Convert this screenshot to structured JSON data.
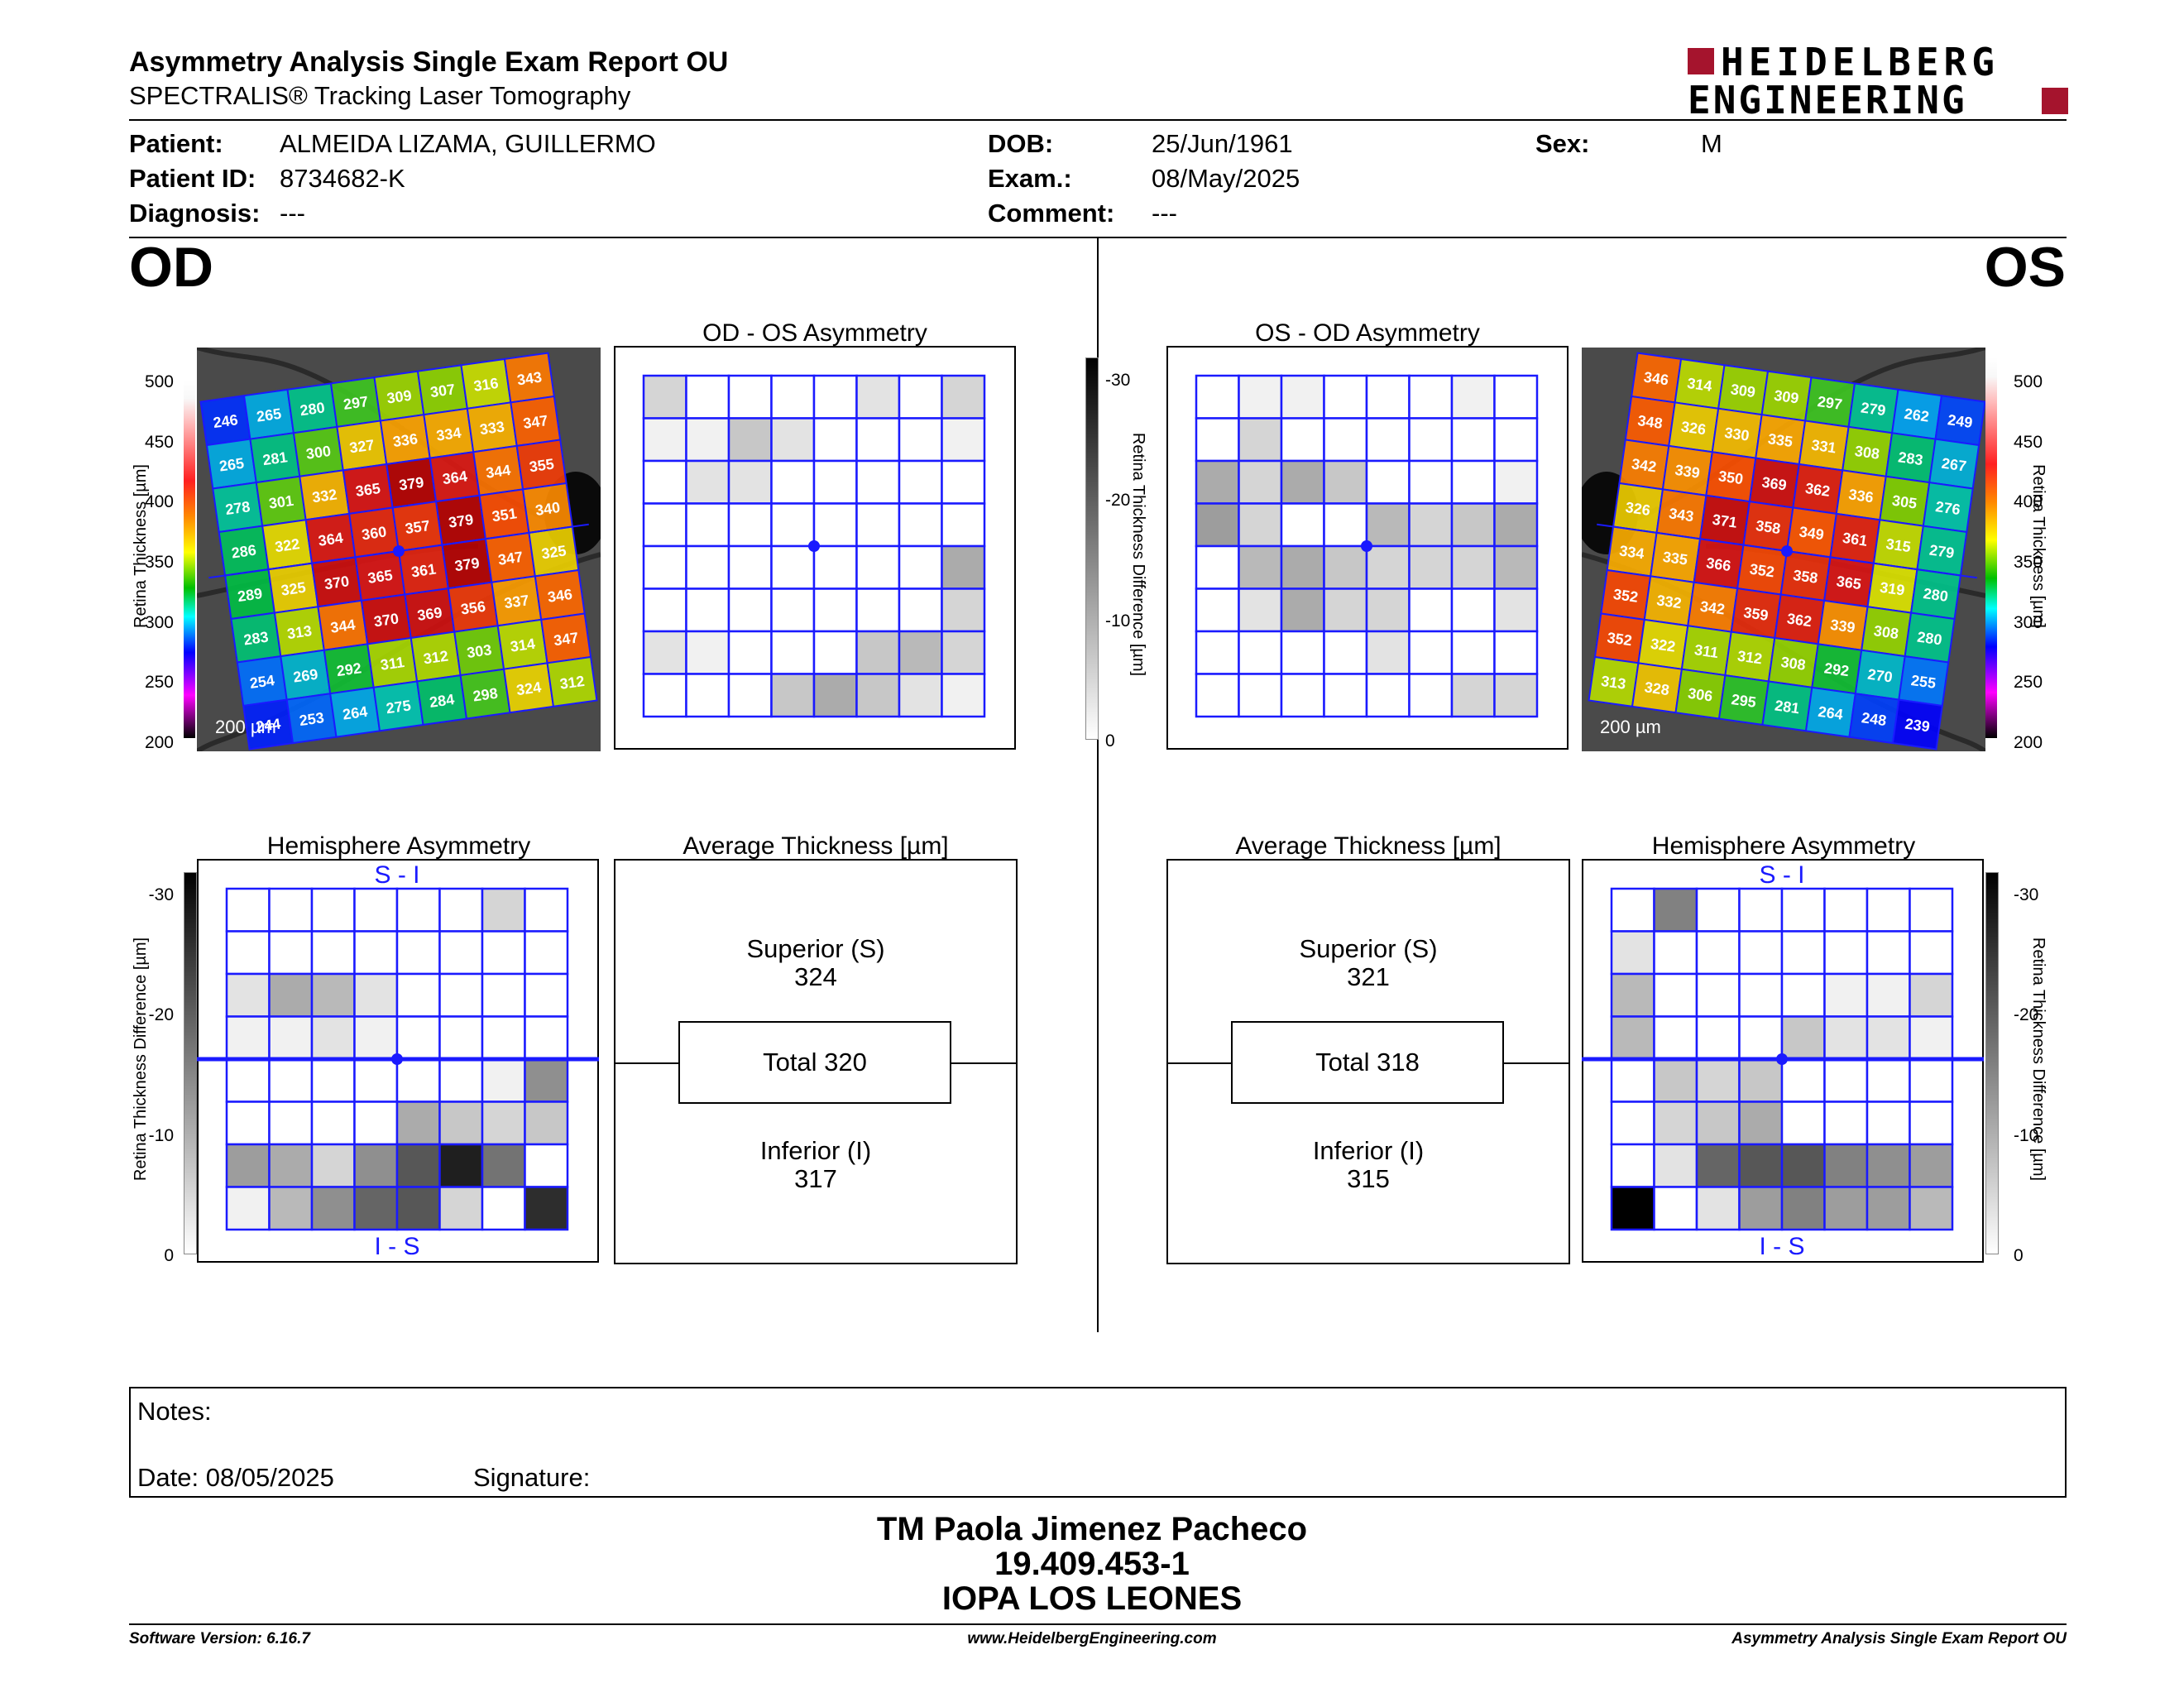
{
  "header": {
    "title": "Asymmetry Analysis Single Exam Report OU",
    "subtitle": "SPECTRALIS® Tracking Laser Tomography",
    "logo_line1": "HEIDELBERG",
    "logo_line2": "ENGINEERING",
    "logo_color": "#a5142d"
  },
  "patient": {
    "patient_label": "Patient:",
    "patient": "ALMEIDA LIZAMA, GUILLERMO",
    "id_label": "Patient ID:",
    "id": "8734682-K",
    "diagnosis_label": "Diagnosis:",
    "diagnosis": "---",
    "dob_label": "DOB:",
    "dob": "25/Jun/1961",
    "exam_label": "Exam.:",
    "exam": "08/May/2025",
    "comment_label": "Comment:",
    "comment": "---",
    "sex_label": "Sex:",
    "sex": "M"
  },
  "od": {
    "eye": "OD",
    "asym_title": "OD - OS Asymmetry",
    "hemi_title": "Hemisphere Asymmetry",
    "avg_title": "Average Thickness [µm]",
    "superior_label": "Superior (S)",
    "superior": "324",
    "total": "Total 320",
    "inferior_label": "Inferior (I)",
    "inferior": "317",
    "scale_bar": "200 µm",
    "hemi_top": "S - I",
    "hemi_bottom": "I - S",
    "thickness_grid": [
      [
        "246",
        "265",
        "280",
        "297",
        "309",
        "307",
        "316",
        "343"
      ],
      [
        "265",
        "281",
        "300",
        "327",
        "336",
        "334",
        "333",
        "347"
      ],
      [
        "278",
        "301",
        "332",
        "365",
        "379",
        "364",
        "344",
        "355"
      ],
      [
        "286",
        "322",
        "364",
        "360",
        "357",
        "379",
        "351",
        "340"
      ],
      [
        "289",
        "325",
        "370",
        "365",
        "361",
        "379",
        "347",
        "325"
      ],
      [
        "283",
        "313",
        "344",
        "370",
        "369",
        "356",
        "337",
        "346"
      ],
      [
        "254",
        "269",
        "292",
        "311",
        "312",
        "303",
        "314",
        "347"
      ],
      [
        "244",
        "253",
        "264",
        "275",
        "284",
        "298",
        "324",
        "312"
      ]
    ],
    "asym_grid": [
      [
        3,
        0,
        0,
        0,
        0,
        2,
        0,
        3
      ],
      [
        1,
        1,
        4,
        2,
        0,
        0,
        0,
        1
      ],
      [
        0,
        2,
        2,
        0,
        0,
        0,
        0,
        0
      ],
      [
        0,
        0,
        0,
        0,
        0,
        0,
        0,
        0
      ],
      [
        0,
        0,
        0,
        0,
        0,
        0,
        0,
        6
      ],
      [
        0,
        0,
        0,
        0,
        0,
        0,
        0,
        3
      ],
      [
        2,
        1,
        0,
        0,
        0,
        4,
        5,
        3
      ],
      [
        0,
        0,
        0,
        4,
        6,
        4,
        2,
        1
      ]
    ],
    "hemi_grid": [
      [
        0,
        0,
        0,
        0,
        0,
        0,
        3,
        0
      ],
      [
        0,
        0,
        0,
        0,
        0,
        0,
        0,
        0
      ],
      [
        2,
        6,
        5,
        2,
        0,
        0,
        0,
        0
      ],
      [
        1,
        1,
        2,
        1,
        0,
        0,
        0,
        0
      ],
      [
        0,
        0,
        0,
        0,
        0,
        0,
        1,
        8
      ],
      [
        0,
        0,
        0,
        0,
        6,
        4,
        3,
        4
      ],
      [
        7,
        6,
        3,
        8,
        12,
        16,
        10,
        0
      ],
      [
        1,
        5,
        8,
        11,
        12,
        3,
        0,
        15
      ]
    ]
  },
  "os": {
    "eye": "OS",
    "asym_title": "OS - OD Asymmetry",
    "hemi_title": "Hemisphere Asymmetry",
    "avg_title": "Average Thickness [µm]",
    "superior_label": "Superior (S)",
    "superior": "321",
    "total": "Total 318",
    "inferior_label": "Inferior (I)",
    "inferior": "315",
    "scale_bar": "200 µm",
    "hemi_top": "S - I",
    "hemi_bottom": "I - S",
    "thickness_grid": [
      [
        "346",
        "314",
        "309",
        "309",
        "297",
        "279",
        "262",
        "249"
      ],
      [
        "348",
        "326",
        "330",
        "335",
        "331",
        "308",
        "283",
        "267"
      ],
      [
        "342",
        "339",
        "350",
        "369",
        "362",
        "336",
        "305",
        "276"
      ],
      [
        "326",
        "343",
        "371",
        "358",
        "349",
        "361",
        "315",
        "279"
      ],
      [
        "334",
        "335",
        "366",
        "352",
        "358",
        "365",
        "319",
        "280"
      ],
      [
        "352",
        "332",
        "342",
        "359",
        "362",
        "339",
        "308",
        "280"
      ],
      [
        "352",
        "322",
        "311",
        "312",
        "308",
        "292",
        "270",
        "255"
      ],
      [
        "313",
        "328",
        "306",
        "295",
        "281",
        "264",
        "248",
        "239"
      ]
    ],
    "asym_grid": [
      [
        0,
        1,
        1,
        0,
        0,
        0,
        1,
        0
      ],
      [
        0,
        3,
        0,
        0,
        0,
        0,
        0,
        0
      ],
      [
        6,
        3,
        6,
        4,
        0,
        0,
        0,
        1
      ],
      [
        7,
        3,
        0,
        0,
        5,
        3,
        4,
        6
      ],
      [
        0,
        5,
        6,
        4,
        3,
        3,
        3,
        5
      ],
      [
        0,
        2,
        6,
        3,
        3,
        0,
        0,
        2
      ],
      [
        0,
        0,
        0,
        0,
        2,
        0,
        0,
        0
      ],
      [
        0,
        0,
        0,
        0,
        0,
        0,
        3,
        3
      ]
    ],
    "hemi_grid": [
      [
        0,
        9,
        0,
        0,
        0,
        0,
        0,
        0
      ],
      [
        2,
        0,
        0,
        0,
        0,
        0,
        0,
        0
      ],
      [
        5,
        0,
        0,
        0,
        0,
        1,
        1,
        3
      ],
      [
        5,
        0,
        0,
        0,
        4,
        2,
        2,
        1
      ],
      [
        0,
        4,
        3,
        4,
        0,
        0,
        0,
        0
      ],
      [
        0,
        3,
        4,
        6,
        0,
        0,
        0,
        0
      ],
      [
        0,
        2,
        11,
        12,
        12,
        9,
        8,
        7
      ],
      [
        20,
        0,
        2,
        7,
        9,
        7,
        7,
        5
      ]
    ]
  },
  "thickness_scale": {
    "label": "Retina Thickness [µm]",
    "ticks": [
      "500",
      "450",
      "400",
      "350",
      "300",
      "250",
      "200"
    ]
  },
  "diff_scale": {
    "label": "Retina Thickness Difference [µm]",
    "ticks": [
      "-30",
      "-20",
      "-10",
      "0"
    ]
  },
  "notes": {
    "notes_label": "Notes:",
    "date_label": "Date: 08/05/2025",
    "signature_label": "Signature:"
  },
  "signatory": {
    "name": "TM Paola Jimenez Pacheco",
    "rut": "19.409.453-1",
    "institution": "IOPA LOS LEONES"
  },
  "footer": {
    "software": "Software Version: 6.16.7",
    "website": "www.HeidelbergEngineering.com",
    "report": "Asymmetry Analysis Single Exam Report OU"
  }
}
